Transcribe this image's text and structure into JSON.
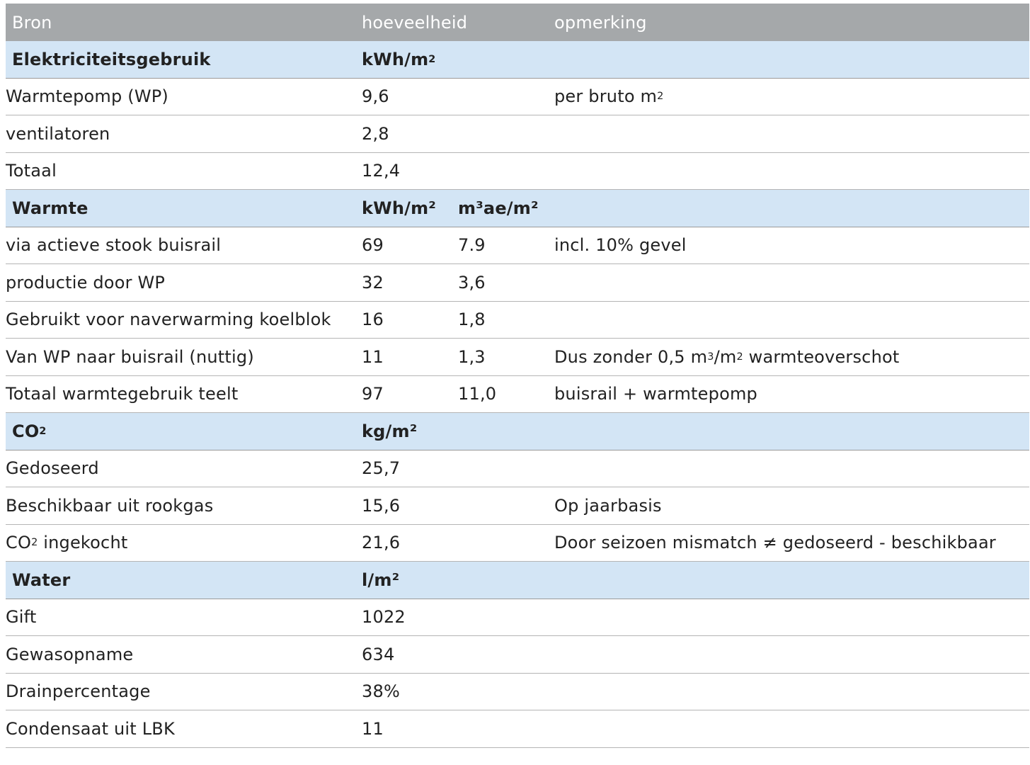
{
  "header": {
    "col_source": "Bron",
    "col_amount": "hoeveelheid",
    "col_remark": "opmerking"
  },
  "sections": [
    {
      "title": "Elektriciteitsgebruik",
      "unit1": "kWh/m",
      "unit1_sup": "2",
      "unit2": "",
      "rows": [
        {
          "label": "Warmtepomp (WP)",
          "v1": "9,6",
          "v2": "",
          "remark": "per bruto m",
          "remark_sup": "2"
        },
        {
          "label": "ventilatoren",
          "v1": "2,8",
          "v2": "",
          "remark": ""
        },
        {
          "label": "Totaal",
          "v1": "12,4",
          "v2": "",
          "remark": ""
        }
      ]
    },
    {
      "title": "Warmte",
      "unit1": "kWh/m²",
      "unit2": "m³ae/m²",
      "rows": [
        {
          "label": "via actieve stook buisrail",
          "v1": "69",
          "v2": "7.9",
          "remark": "incl. 10% gevel"
        },
        {
          "label": "productie door WP",
          "v1": "32",
          "v2": "3,6",
          "remark": ""
        },
        {
          "label": "Gebruikt voor naverwarming koelblok",
          "v1": "16",
          "v2": "1,8",
          "remark": ""
        },
        {
          "label": "Van WP naar buisrail (nuttig)",
          "v1": "11",
          "v2": "1,3",
          "remark_a": "Dus zonder 0,5 m",
          "remark_sup1": "3",
          "remark_b": "/m",
          "remark_sup2": "2",
          "remark_c": " warmteoverschot"
        },
        {
          "label": "Totaal warmtegebruik teelt",
          "v1": "97",
          "v2": "11,0",
          "remark": "buisrail + warmtepomp"
        }
      ]
    },
    {
      "title": "CO",
      "title_sub": "2",
      "unit1": "kg/m²",
      "unit2": "",
      "rows": [
        {
          "label": "Gedoseerd",
          "v1": "25,7",
          "v2": "",
          "remark": ""
        },
        {
          "label": "Beschikbaar uit rookgas",
          "v1": "15,6",
          "v2": "",
          "remark": "Op jaarbasis"
        },
        {
          "label_a": "CO",
          "label_sub": "2",
          "label_b": " ingekocht",
          "v1": "21,6",
          "v2": "",
          "remark": "Door seizoen mismatch ≠ gedoseerd - beschikbaar"
        }
      ]
    },
    {
      "title": "Water",
      "unit1": "l/m²",
      "unit2": "",
      "rows": [
        {
          "label": "Gift",
          "v1": "1022",
          "v2": "",
          "remark": ""
        },
        {
          "label": "Gewasopname",
          "v1": "634",
          "v2": "",
          "remark": ""
        },
        {
          "label": "Drainpercentage",
          "v1": "38%",
          "v2": "",
          "remark": ""
        },
        {
          "label": "Condensaat uit LBK",
          "v1": "11",
          "v2": "",
          "remark": ""
        }
      ]
    }
  ],
  "colors": {
    "header_bg": "#a5a8aa",
    "section_bg": "#d3e5f5",
    "divider": "#b5b5b5"
  }
}
